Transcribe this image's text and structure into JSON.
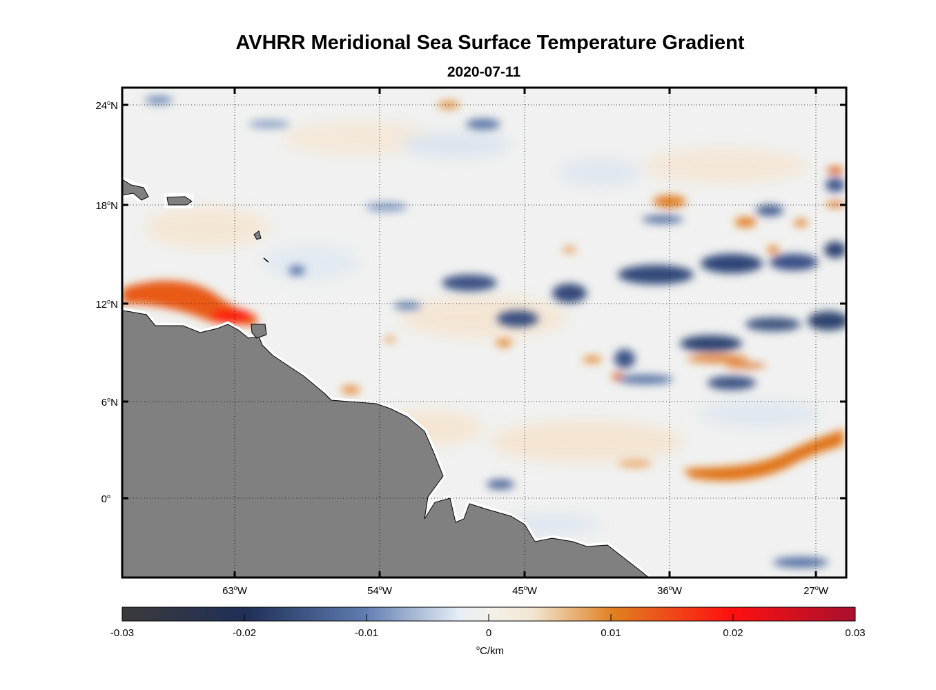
{
  "title": "AVHRR Meridional Sea Surface Temperature Gradient",
  "subtitle": "2020-07-11",
  "map": {
    "lat_ticks": [
      {
        "deg": "24",
        "hem": "N"
      },
      {
        "deg": "18",
        "hem": "N"
      },
      {
        "deg": "12",
        "hem": "N"
      },
      {
        "deg": "6",
        "hem": "N"
      },
      {
        "deg": "0",
        "hem": ""
      }
    ],
    "lon_ticks": [
      {
        "deg": "63",
        "hem": "W"
      },
      {
        "deg": "54",
        "hem": "W"
      },
      {
        "deg": "45",
        "hem": "W"
      },
      {
        "deg": "36",
        "hem": "W"
      },
      {
        "deg": "27",
        "hem": "W"
      }
    ],
    "land_color": "#808080",
    "grid": "dotted"
  },
  "colorbar": {
    "ticks": [
      "-0.03",
      "-0.02",
      "-0.01",
      "0",
      "0.01",
      "0.02",
      "0.03"
    ],
    "unit_symbol": "o",
    "unit_text": "C/km",
    "colors": [
      "#3a3a3a",
      "#1f2f58",
      "#5f7cb0",
      "#e6eef6",
      "#f1e9d7",
      "#e08020",
      "#ff1010",
      "#a8102e"
    ]
  }
}
